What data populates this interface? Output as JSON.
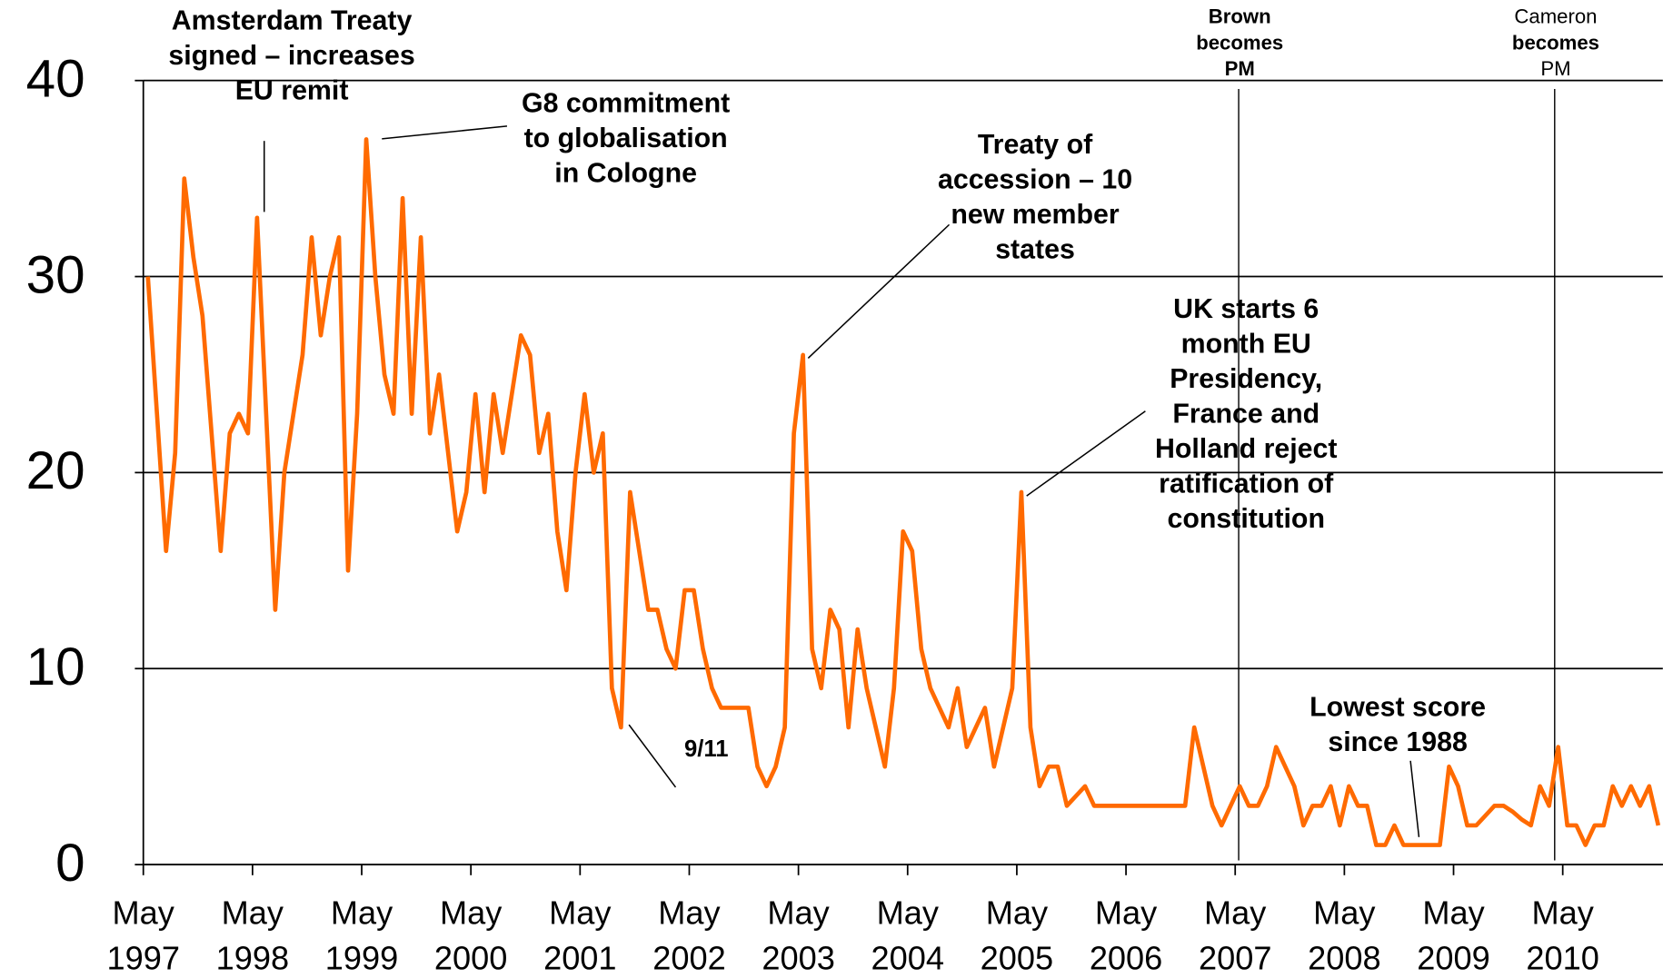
{
  "chart_data": {
    "type": "line",
    "categories": [
      "May 1997",
      null,
      null,
      null,
      null,
      null,
      null,
      null,
      null,
      null,
      null,
      null,
      "May 1998",
      null,
      null,
      null,
      null,
      null,
      null,
      null,
      null,
      null,
      null,
      null,
      "May 1999",
      null,
      null,
      null,
      null,
      null,
      null,
      null,
      null,
      null,
      null,
      null,
      "May 2000",
      null,
      null,
      null,
      null,
      null,
      null,
      null,
      null,
      null,
      null,
      null,
      "May 2001",
      null,
      null,
      null,
      null,
      null,
      null,
      null,
      null,
      null,
      null,
      null,
      "May 2002",
      null,
      null,
      null,
      null,
      null,
      null,
      null,
      null,
      null,
      null,
      null,
      "May 2003",
      null,
      null,
      null,
      null,
      null,
      null,
      null,
      null,
      null,
      null,
      null,
      "May 2004",
      null,
      null,
      null,
      null,
      null,
      null,
      null,
      null,
      null,
      null,
      null,
      "May 2005",
      null,
      null,
      null,
      null,
      null,
      null,
      null,
      null,
      null,
      null,
      null,
      "May 2006",
      null,
      null,
      null,
      null,
      null,
      null,
      null,
      null,
      null,
      null,
      null,
      "May 2007",
      null,
      null,
      null,
      null,
      null,
      null,
      null,
      null,
      null,
      null,
      null,
      "May 2008",
      null,
      null,
      null,
      null,
      null,
      null,
      null,
      null,
      null,
      null,
      null,
      "May 2009",
      null,
      null,
      null,
      null,
      null,
      null,
      null,
      null,
      null,
      null,
      null,
      "May 2010",
      null,
      null,
      null,
      null,
      null,
      null,
      null,
      null,
      null,
      null
    ],
    "series": [
      {
        "color": "#ff6a00",
        "values": [
          30,
          23,
          16,
          21,
          35,
          31,
          28,
          22,
          16,
          22,
          23,
          22,
          33,
          23,
          13,
          20,
          23,
          26,
          32,
          27,
          30,
          32,
          15,
          23,
          37,
          30,
          25,
          23,
          34,
          23,
          32,
          22,
          25,
          21,
          17,
          19,
          24,
          19,
          24,
          21,
          24,
          27,
          26,
          21,
          23,
          17,
          14,
          20,
          24,
          20,
          22,
          9,
          7,
          19,
          16,
          13,
          13,
          11,
          10,
          14,
          14,
          11,
          9,
          8,
          8,
          8,
          8,
          5,
          4,
          5,
          7,
          22,
          26,
          11,
          9,
          13,
          12,
          7,
          12,
          9,
          7,
          5,
          9,
          17,
          16,
          11,
          9,
          8,
          7,
          9,
          6,
          7,
          8,
          5,
          7,
          9,
          19,
          7,
          4,
          5,
          5,
          3,
          3.5,
          4,
          3,
          3,
          3,
          3,
          3,
          3,
          3,
          3,
          3,
          3,
          3,
          7,
          5,
          3,
          2,
          3,
          4,
          3,
          3,
          4,
          6,
          5,
          4,
          2,
          3,
          3,
          4,
          2,
          4,
          3,
          3,
          1,
          1,
          2,
          1,
          1,
          1,
          1,
          1,
          5,
          4,
          2,
          2,
          2.5,
          3,
          3,
          2.7,
          2.3,
          2,
          4,
          3,
          6,
          2,
          2,
          1,
          2,
          2,
          4,
          3,
          4,
          3,
          4,
          2
        ]
      }
    ],
    "ylim": [
      0,
      40
    ],
    "yticks": [
      0,
      10,
      20,
      30,
      40
    ],
    "grid": true,
    "annotations": [
      [
        "Amsterdam Treaty",
        "signed – increases",
        "EU remit"
      ],
      [
        "G8 commitment",
        "to globalisation",
        "in Cologne"
      ],
      [
        "Treaty of",
        "accession – 10",
        "new member",
        "states"
      ],
      [
        "UK starts 6",
        "month EU",
        "Presidency,",
        "France and",
        "Holland reject",
        "ratification of",
        "constitution"
      ],
      [
        "9/11"
      ],
      [
        "Lowest score",
        "since 1988"
      ],
      [
        "Brown",
        "becomes",
        "PM"
      ],
      [
        "Cameron",
        "becomes",
        "PM"
      ]
    ]
  }
}
